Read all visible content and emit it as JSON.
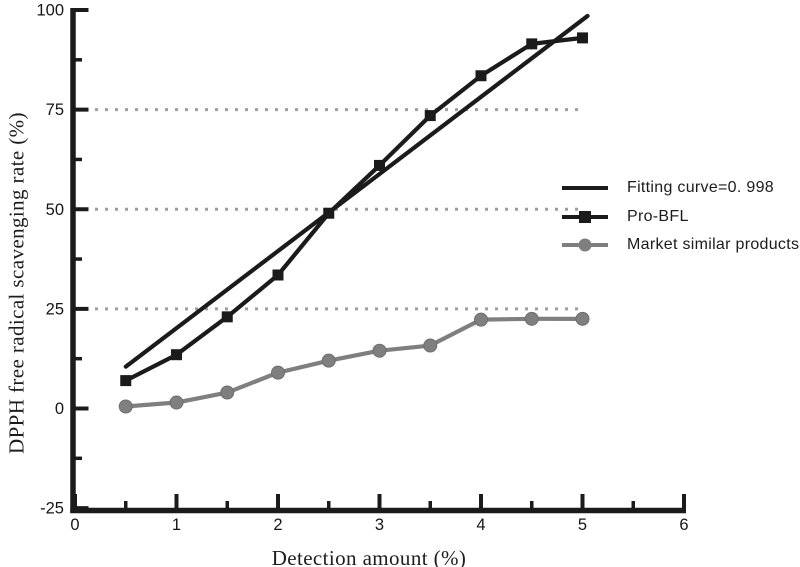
{
  "chart_data": {
    "type": "line",
    "title": "",
    "xlabel": "Detection amount (%)",
    "ylabel": "DPPH free radical scavenging rate (%)",
    "xlim": [
      0,
      6
    ],
    "ylim": [
      -25,
      100
    ],
    "xticks_major": [
      0,
      1,
      2,
      3,
      4,
      5,
      6
    ],
    "xticks_minor": [
      0.5,
      1.5,
      2.5,
      3.5,
      4.5,
      5.5
    ],
    "yticks_major": [
      -25,
      0,
      25,
      50,
      75,
      100
    ],
    "yticks_minor": [
      -12.5,
      12.5,
      37.5,
      62.5,
      87.5
    ],
    "grid": {
      "y_values": [
        25,
        50,
        75
      ],
      "style": "dotted",
      "x_extent": [
        0,
        5.02
      ],
      "color": "#9e9e9e"
    },
    "axis_color": "#1b1b1b",
    "tick_label_color": "#161616",
    "legend_position": "center-right",
    "series": [
      {
        "name": "Fitting curve=0. 998",
        "marker": "none",
        "color": "#1b1b1b",
        "x": [
          0.5,
          5.05
        ],
        "y": [
          10.5,
          98.5
        ]
      },
      {
        "name": "Pro-BFL",
        "marker": "square",
        "color": "#1b1b1b",
        "x": [
          0.5,
          1,
          1.5,
          2,
          2.5,
          3,
          3.5,
          4,
          4.5,
          5
        ],
        "y": [
          7,
          13.5,
          23,
          33.5,
          49,
          61,
          73.5,
          83.5,
          91.5,
          93
        ]
      },
      {
        "name": "Market similar products",
        "marker": "circle",
        "color": "#7f7f7f",
        "x": [
          0.5,
          1,
          1.5,
          2,
          2.5,
          3,
          3.5,
          4,
          4.5,
          5
        ],
        "y": [
          0.5,
          1.5,
          4,
          9,
          12,
          14.5,
          15.8,
          22.3,
          22.5,
          22.5
        ]
      }
    ]
  }
}
